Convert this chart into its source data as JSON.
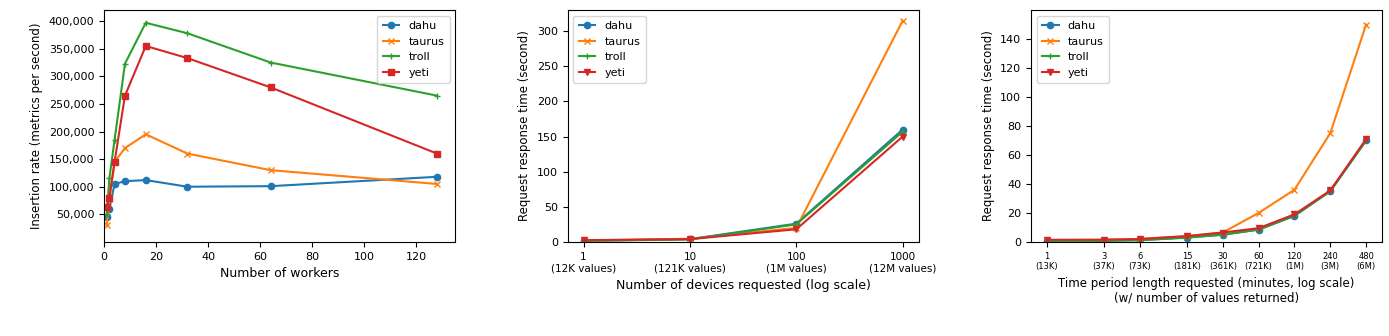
{
  "plot1": {
    "xlabel": "Number of workers",
    "ylabel": "Insertion rate (metrics per second)",
    "series": {
      "dahu": {
        "x": [
          1,
          2,
          4,
          8,
          16,
          32,
          64,
          128
        ],
        "y": [
          45000,
          60000,
          105000,
          110000,
          112000,
          100000,
          101000,
          118000
        ],
        "color": "#1f77b4",
        "marker": "o"
      },
      "taurus": {
        "x": [
          1,
          2,
          4,
          8,
          16,
          32,
          64,
          128
        ],
        "y": [
          30000,
          78000,
          145000,
          170000,
          195000,
          160000,
          130000,
          105000
        ],
        "color": "#ff7f0e",
        "marker": "x"
      },
      "troll": {
        "x": [
          1,
          2,
          4,
          8,
          16,
          32,
          64,
          128
        ],
        "y": [
          50000,
          115000,
          185000,
          323000,
          397000,
          378000,
          325000,
          265000
        ],
        "color": "#2ca02c",
        "marker": "+"
      },
      "yeti": {
        "x": [
          1,
          2,
          4,
          8,
          16,
          32,
          64,
          128
        ],
        "y": [
          63000,
          80000,
          145000,
          265000,
          355000,
          333000,
          280000,
          160000
        ],
        "color": "#d62728",
        "marker": "s"
      }
    },
    "ylim": [
      0,
      420000
    ],
    "yticks": [
      50000,
      100000,
      150000,
      200000,
      250000,
      300000,
      350000,
      400000
    ],
    "xticks": [
      0,
      20,
      40,
      60,
      80,
      100,
      120
    ],
    "xlim": [
      0,
      135
    ]
  },
  "plot2": {
    "xlabel": "Number of devices requested (log scale)",
    "ylabel": "Request response time (second)",
    "xticks": [
      1,
      10,
      100,
      1000
    ],
    "xticklabels": [
      "1\n(12K values)",
      "10\n(121K values)",
      "100\n(1M values)",
      "1000\n(12M values)"
    ],
    "series": {
      "dahu": {
        "x": [
          1,
          10,
          100,
          1000
        ],
        "y": [
          1.5,
          4.0,
          26.0,
          160.0
        ],
        "color": "#1f77b4",
        "marker": "o"
      },
      "taurus": {
        "x": [
          1,
          10,
          100,
          1000
        ],
        "y": [
          2.0,
          4.5,
          20.0,
          315.0
        ],
        "color": "#ff7f0e",
        "marker": "x"
      },
      "troll": {
        "x": [
          1,
          10,
          100,
          1000
        ],
        "y": [
          1.5,
          3.5,
          25.0,
          157.0
        ],
        "color": "#2ca02c",
        "marker": "+"
      },
      "yeti": {
        "x": [
          1,
          10,
          100,
          1000
        ],
        "y": [
          2.5,
          4.0,
          18.0,
          150.0
        ],
        "color": "#d62728",
        "marker": "v"
      }
    },
    "ylim": [
      0,
      330
    ],
    "yticks": [
      0,
      50,
      100,
      150,
      200,
      250,
      300
    ]
  },
  "plot3": {
    "xlabel": "Time period length requested (minutes, log scale)\n(w/ number of values returned)",
    "ylabel": "Request response time (second)",
    "xticks": [
      1,
      3,
      6,
      15,
      30,
      60,
      120,
      240,
      480
    ],
    "xticklabels": [
      "1\n(13K)",
      "3\n(37K)",
      "6\n(73K)",
      "15\n(181K)",
      "30\n(361K)",
      "60\n(721K)",
      "120\n(1M)",
      "240\n(3M)",
      "480\n(6M)"
    ],
    "series": {
      "dahu": {
        "x": [
          1,
          3,
          6,
          15,
          30,
          60,
          120,
          240,
          480
        ],
        "y": [
          0.5,
          0.8,
          1.2,
          3.0,
          5.0,
          8.5,
          18.0,
          35.0,
          70.0
        ],
        "color": "#1f77b4",
        "marker": "o"
      },
      "taurus": {
        "x": [
          1,
          3,
          6,
          15,
          30,
          60,
          120,
          240,
          480
        ],
        "y": [
          1.2,
          1.5,
          2.0,
          4.0,
          6.5,
          20.0,
          36.0,
          75.0,
          150.0
        ],
        "color": "#ff7f0e",
        "marker": "x"
      },
      "troll": {
        "x": [
          1,
          3,
          6,
          15,
          30,
          60,
          120,
          240,
          480
        ],
        "y": [
          0.5,
          0.8,
          1.2,
          3.0,
          5.0,
          8.5,
          18.0,
          35.0,
          70.0
        ],
        "color": "#2ca02c",
        "marker": "+"
      },
      "yeti": {
        "x": [
          1,
          3,
          6,
          15,
          30,
          60,
          120,
          240,
          480
        ],
        "y": [
          1.5,
          1.5,
          2.0,
          4.0,
          6.5,
          9.5,
          19.0,
          35.5,
          71.0
        ],
        "color": "#d62728",
        "marker": "v"
      }
    },
    "ylim": [
      0,
      160
    ],
    "yticks": [
      0,
      20,
      40,
      60,
      80,
      100,
      120,
      140
    ]
  }
}
